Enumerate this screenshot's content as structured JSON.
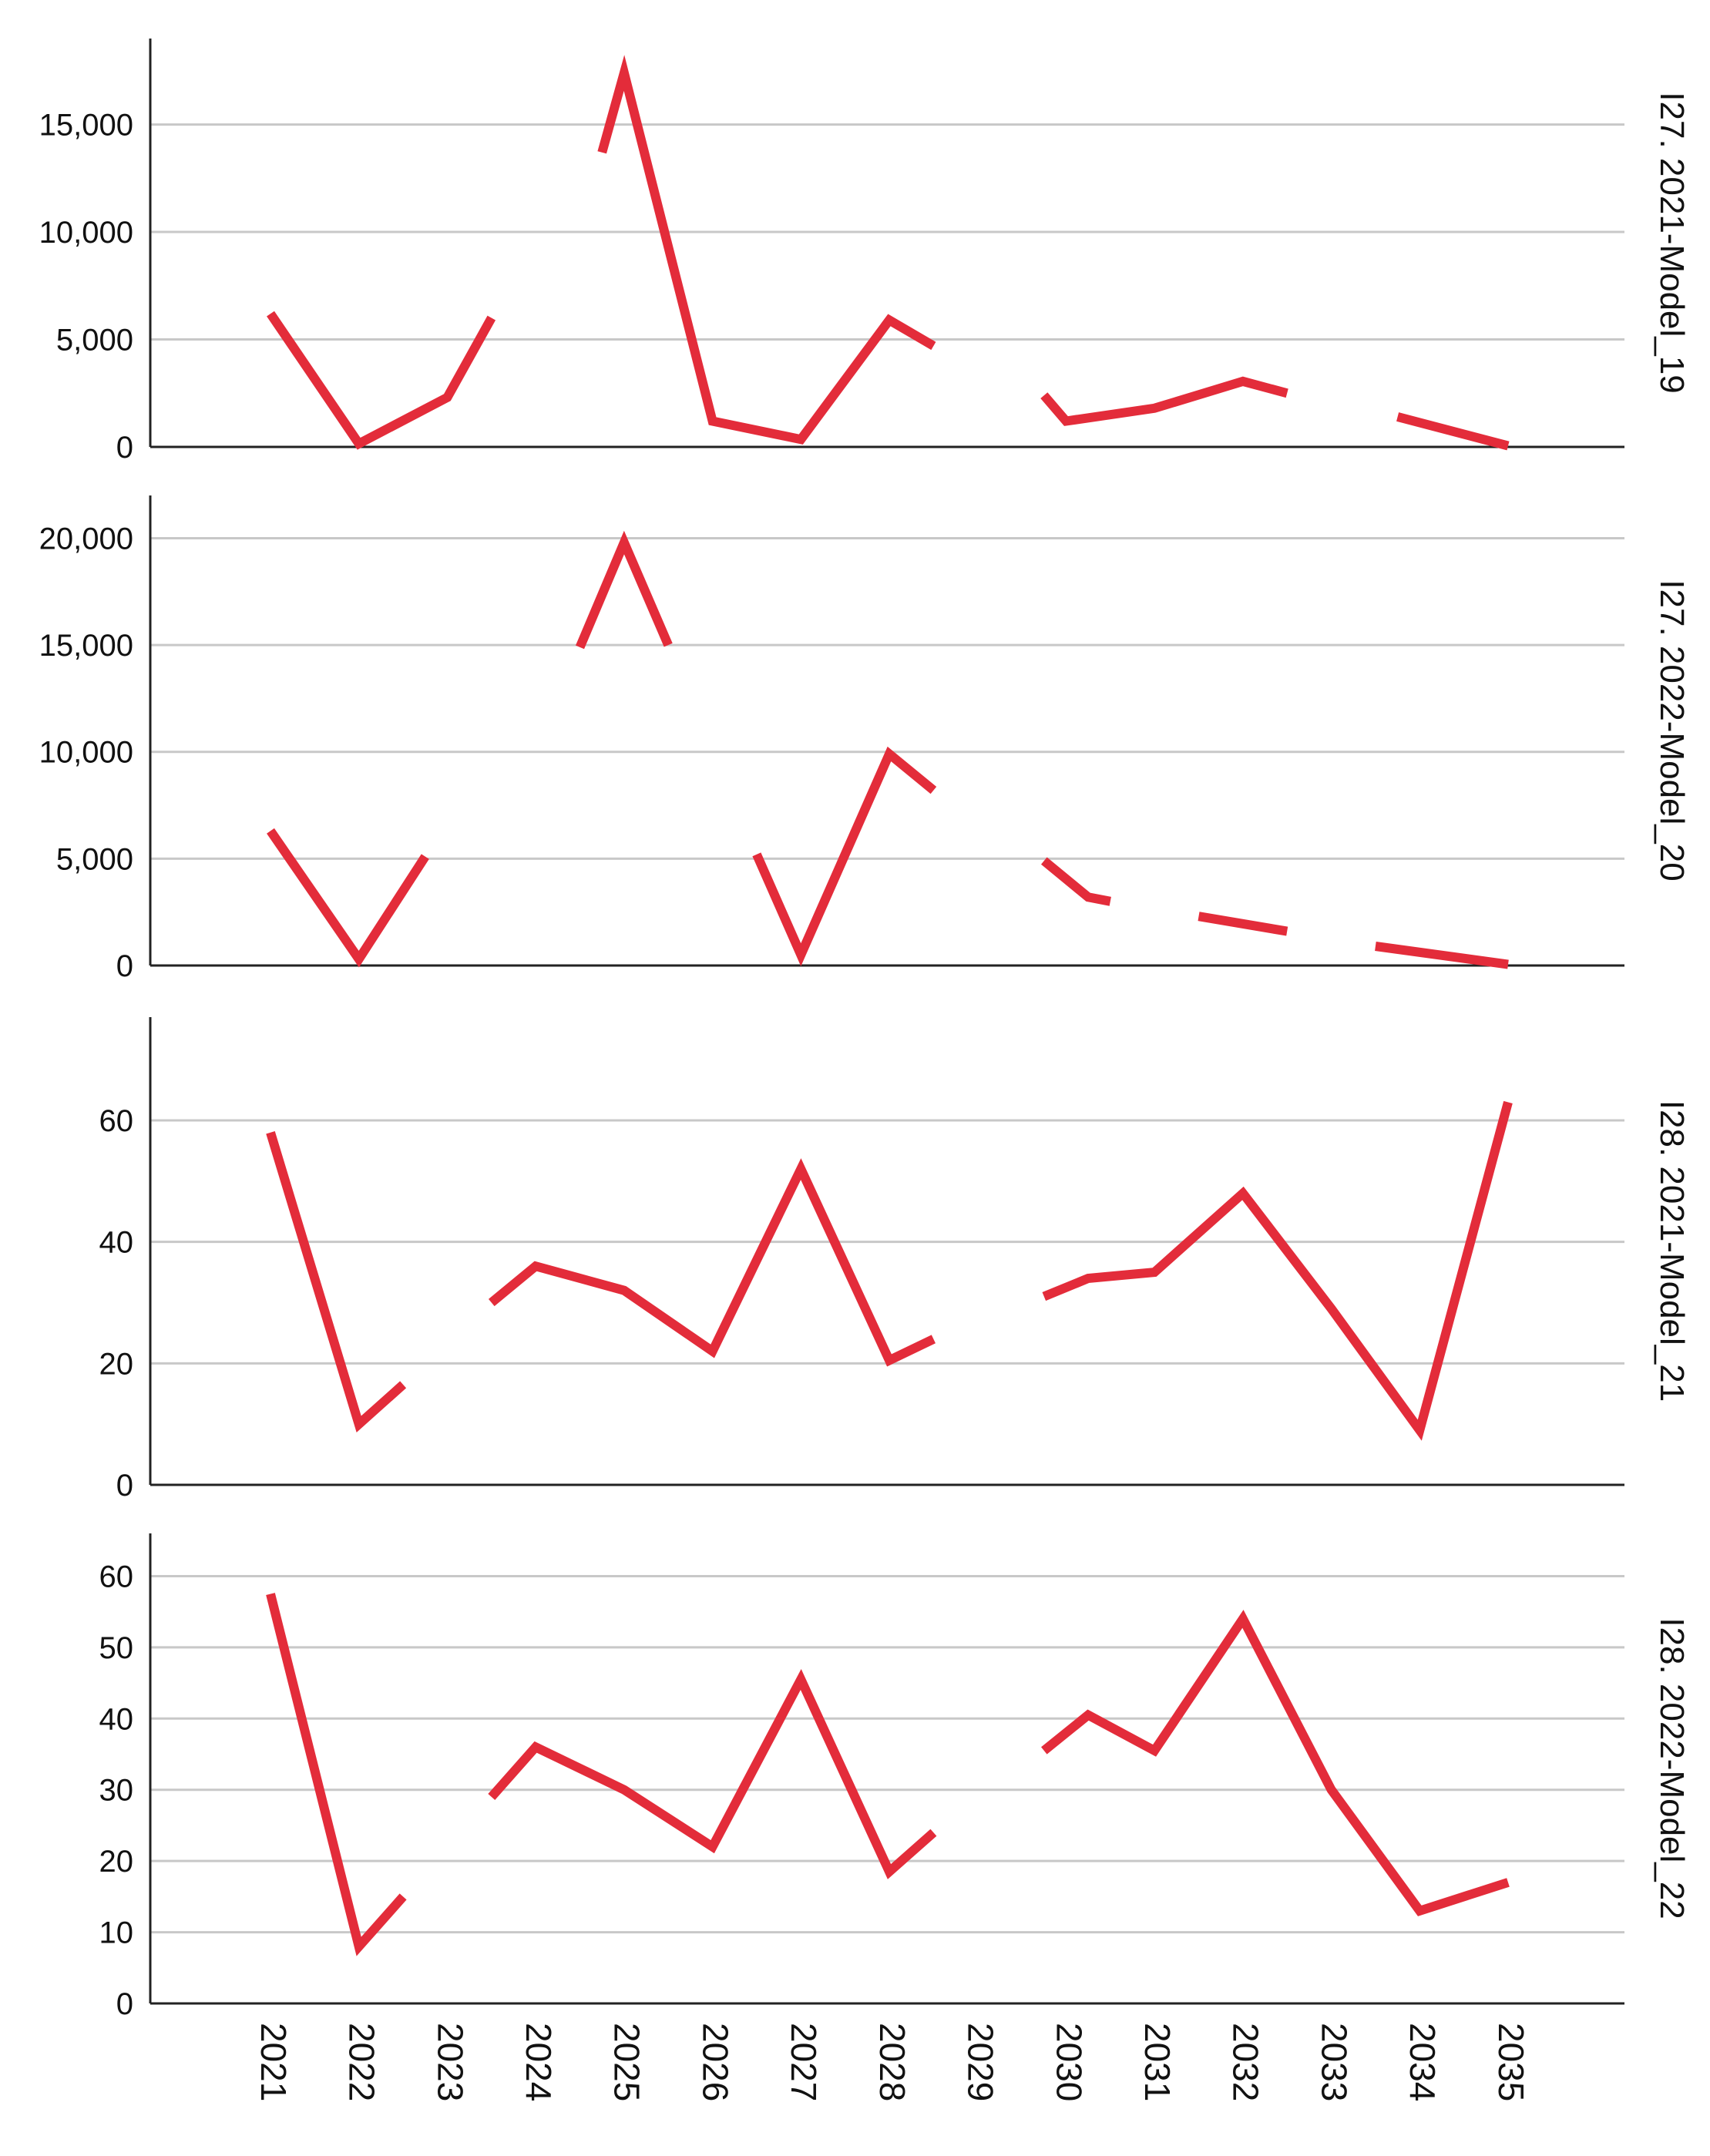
{
  "chart_data": {
    "type": "line",
    "line_color": "#e32c3a",
    "grid": true,
    "x_categories": [
      "2021",
      "2022",
      "2023",
      "2024",
      "2025",
      "2026",
      "2027",
      "2028",
      "2029",
      "2030",
      "2031",
      "2032",
      "2033",
      "2034",
      "2035"
    ],
    "panels": [
      {
        "label": "I27. 2021-Model_19",
        "yticks": [
          0,
          5000,
          10000,
          15000
        ],
        "ytick_labels": [
          "0",
          "5,000",
          "10,000",
          "15,000"
        ],
        "ylim": [
          0,
          19000
        ],
        "segments": [
          [
            [
              2021.0,
              6200
            ],
            [
              2022.0,
              150
            ],
            [
              2023.0,
              2300
            ],
            [
              2023.5,
              6000
            ]
          ],
          [
            [
              2024.75,
              13700
            ],
            [
              2025.0,
              17400
            ],
            [
              2026.0,
              1200
            ],
            [
              2027.0,
              350
            ],
            [
              2028.0,
              5900
            ],
            [
              2028.5,
              4700
            ]
          ],
          [
            [
              2029.75,
              2400
            ],
            [
              2030.0,
              1200
            ],
            [
              2031.0,
              1800
            ],
            [
              2032.0,
              3050
            ],
            [
              2032.5,
              2500
            ]
          ],
          [
            [
              2033.75,
              1400
            ],
            [
              2035.0,
              50
            ]
          ]
        ]
      },
      {
        "label": "I27. 2022-Model_20",
        "yticks": [
          0,
          5000,
          10000,
          15000,
          20000
        ],
        "ytick_labels": [
          "0",
          "5,000",
          "10,000",
          "15,000",
          "20,000"
        ],
        "ylim": [
          0,
          22000
        ],
        "segments": [
          [
            [
              2021.0,
              6300
            ],
            [
              2022.0,
              300
            ],
            [
              2022.75,
              5100
            ]
          ],
          [
            [
              2024.5,
              14900
            ],
            [
              2025.0,
              19800
            ],
            [
              2025.5,
              15000
            ]
          ],
          [
            [
              2026.5,
              5200
            ],
            [
              2027.0,
              500
            ],
            [
              2028.0,
              9900
            ],
            [
              2028.5,
              8200
            ]
          ],
          [
            [
              2029.75,
              4900
            ],
            [
              2030.25,
              3200
            ],
            [
              2030.5,
              3000
            ]
          ],
          [
            [
              2031.5,
              2300
            ],
            [
              2032.5,
              1600
            ]
          ],
          [
            [
              2033.5,
              900
            ],
            [
              2035.0,
              50
            ]
          ]
        ]
      },
      {
        "label": "I28. 2021-Model_21",
        "yticks": [
          0,
          20,
          40,
          60
        ],
        "ytick_labels": [
          "0",
          "20",
          "40",
          "60"
        ],
        "ylim": [
          0,
          77
        ],
        "segments": [
          [
            [
              2021.0,
              58
            ],
            [
              2022.0,
              10
            ],
            [
              2022.5,
              16.5
            ]
          ],
          [
            [
              2023.5,
              30
            ],
            [
              2024.0,
              36
            ],
            [
              2025.0,
              32
            ],
            [
              2026.0,
              22
            ],
            [
              2027.0,
              52
            ],
            [
              2028.0,
              20.5
            ],
            [
              2028.5,
              24
            ]
          ],
          [
            [
              2029.75,
              31
            ],
            [
              2030.25,
              34
            ],
            [
              2031.0,
              35
            ],
            [
              2032.0,
              48
            ],
            [
              2033.0,
              29
            ],
            [
              2034.0,
              9
            ],
            [
              2035.0,
              63
            ]
          ]
        ]
      },
      {
        "label": "I28. 2022-Model_22",
        "yticks": [
          0,
          10,
          20,
          30,
          40,
          50,
          60
        ],
        "ytick_labels": [
          "0",
          "10",
          "20",
          "30",
          "40",
          "50",
          "60"
        ],
        "ylim": [
          0,
          66
        ],
        "segments": [
          [
            [
              2021.0,
              57.5
            ],
            [
              2022.0,
              8
            ],
            [
              2022.5,
              15
            ]
          ],
          [
            [
              2023.5,
              29
            ],
            [
              2024.0,
              36
            ],
            [
              2025.0,
              30
            ],
            [
              2026.0,
              22
            ],
            [
              2027.0,
              45.5
            ],
            [
              2028.0,
              18.5
            ],
            [
              2028.5,
              24
            ]
          ],
          [
            [
              2029.75,
              35.5
            ],
            [
              2030.25,
              40.5
            ],
            [
              2031.0,
              35.5
            ],
            [
              2032.0,
              54
            ],
            [
              2033.0,
              30
            ],
            [
              2034.0,
              13
            ],
            [
              2035.0,
              17
            ]
          ]
        ]
      }
    ]
  }
}
